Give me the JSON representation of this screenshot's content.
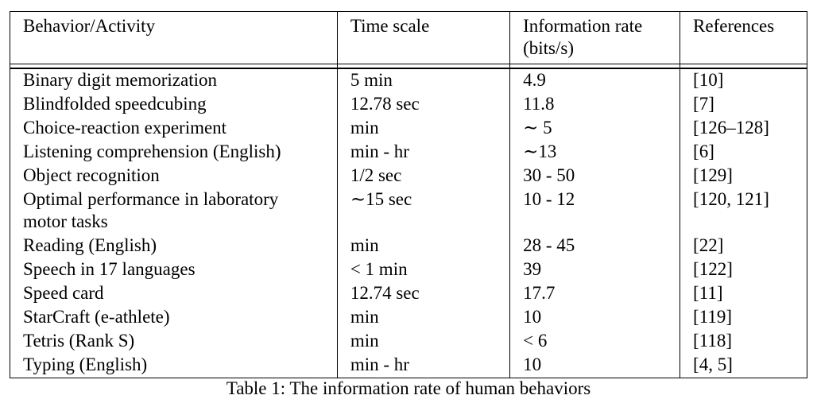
{
  "table": {
    "headers": [
      "Behavior/Activity",
      "Time scale",
      "Information rate (bits/s)",
      "References"
    ],
    "rows": [
      {
        "activity": "Binary digit memorization",
        "time": "5 min",
        "rate": "4.9",
        "refs": "[10]"
      },
      {
        "activity": "Blindfolded speedcubing",
        "time": "12.78 sec",
        "rate": "11.8",
        "refs": "[7]"
      },
      {
        "activity": "Choice-reaction experiment",
        "time": "min",
        "rate": "∼ 5",
        "refs": "[126–128]"
      },
      {
        "activity": "Listening comprehension (English)",
        "time": "min - hr",
        "rate": "∼13",
        "refs": "[6]"
      },
      {
        "activity": "Object recognition",
        "time": "1/2 sec",
        "rate": "30 - 50",
        "refs": "[129]"
      },
      {
        "activity": "Optimal performance in laboratory motor tasks",
        "time": "∼15 sec",
        "rate": "10 - 12",
        "refs": "[120, 121]"
      },
      {
        "activity": "Reading (English)",
        "time": "min",
        "rate": "28 - 45",
        "refs": "[22]"
      },
      {
        "activity": "Speech in 17 languages",
        "time": "< 1 min",
        "rate": "39",
        "refs": "[122]"
      },
      {
        "activity": "Speed card",
        "time": "12.74 sec",
        "rate": "17.7",
        "refs": "[11]"
      },
      {
        "activity": "StarCraft (e-athlete)",
        "time": "min",
        "rate": "10",
        "refs": "[119]"
      },
      {
        "activity": "Tetris (Rank S)",
        "time": "min",
        "rate": "< 6",
        "refs": "[118]"
      },
      {
        "activity": "Typing (English)",
        "time": "min - hr",
        "rate": "10",
        "refs": "[4, 5]"
      }
    ]
  },
  "caption": "Table 1: The information rate of human behaviors"
}
